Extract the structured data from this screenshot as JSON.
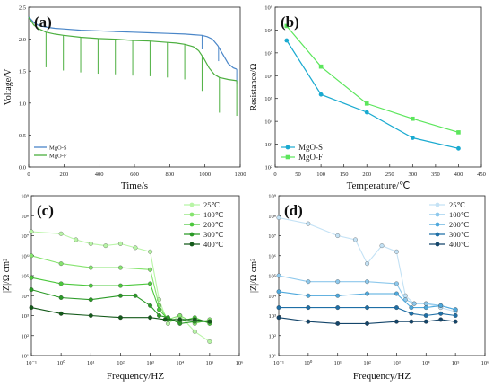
{
  "figure": {
    "panels": [
      {
        "id": "a",
        "label": "(a)"
      },
      {
        "id": "b",
        "label": "(b)"
      },
      {
        "id": "c",
        "label": "(c)"
      },
      {
        "id": "d",
        "label": "(d)"
      }
    ]
  },
  "chart_data": [
    {
      "panel": "(a)",
      "type": "line",
      "xlabel": "Time/s",
      "ylabel": "Voltage/V",
      "xlim": [
        0,
        1220
      ],
      "ylim": [
        0.0,
        2.5
      ],
      "xticks": [
        "0",
        "200",
        "400",
        "600",
        "800",
        "1000",
        "1200"
      ],
      "yticks": [
        "0.0",
        "0.5",
        "1.0",
        "1.5",
        "2.0",
        "2.5"
      ],
      "legend_position": "bottom-left",
      "series": [
        {
          "name": "MgO-S",
          "color": "#4a86c8",
          "x": [
            0,
            30,
            60,
            100,
            150,
            200,
            300,
            400,
            500,
            600,
            700,
            800,
            900,
            950,
            1000,
            1030,
            1060,
            1090,
            1120,
            1150,
            1180,
            1200
          ],
          "y": [
            2.35,
            2.26,
            2.21,
            2.19,
            2.17,
            2.16,
            2.14,
            2.13,
            2.12,
            2.11,
            2.1,
            2.09,
            2.08,
            2.07,
            2.06,
            2.04,
            2.0,
            1.9,
            1.76,
            1.62,
            1.55,
            1.53
          ],
          "pulse_times": [
            1000,
            1095,
            1200
          ],
          "pulse_depth": 0.22
        },
        {
          "name": "MgO-F",
          "color": "#4caf3f",
          "x": [
            0,
            30,
            60,
            100,
            150,
            200,
            300,
            400,
            500,
            600,
            700,
            800,
            850,
            900,
            950,
            980,
            1010,
            1040,
            1070,
            1100,
            1150,
            1200
          ],
          "y": [
            2.34,
            2.22,
            2.16,
            2.11,
            2.08,
            2.06,
            2.03,
            2.01,
            2.0,
            1.98,
            1.97,
            1.95,
            1.94,
            1.92,
            1.88,
            1.82,
            1.7,
            1.55,
            1.45,
            1.4,
            1.37,
            1.35
          ],
          "pulse_times": [
            100,
            200,
            300,
            400,
            500,
            600,
            700,
            800,
            900,
            1000,
            1100,
            1200
          ],
          "pulse_depth": 0.55
        }
      ]
    },
    {
      "panel": "(b)",
      "type": "line",
      "xlabel": "Temperature/℃",
      "ylabel": "Resistance/Ω",
      "xlim": [
        0,
        450
      ],
      "ylim_log10": [
        2,
        9
      ],
      "xticks": [
        "0",
        "50",
        "100",
        "150",
        "200",
        "250",
        "300",
        "350",
        "400",
        "450"
      ],
      "yticks": [
        "10²",
        "10³",
        "10⁴",
        "10⁵",
        "10⁶",
        "10⁷",
        "10⁸",
        "10⁹"
      ],
      "legend_position": "bottom-left",
      "series": [
        {
          "name": "MgO-S",
          "color": "#1aaad0",
          "marker": "circle",
          "x": [
            25,
            100,
            200,
            300,
            400
          ],
          "y": [
            35000000,
            150000,
            25000,
            1900,
            650
          ]
        },
        {
          "name": "MgO-F",
          "color": "#5ce65c",
          "marker": "square",
          "x": [
            25,
            100,
            200,
            300,
            400
          ],
          "y": [
            150000000,
            2500000,
            60000,
            13000,
            3300
          ]
        }
      ]
    },
    {
      "panel": "(c)",
      "type": "scatter",
      "xlabel": "Frequency/HZ",
      "ylabel": "|Z|/Ω cm²",
      "xlim_log10": [
        -1,
        6
      ],
      "ylim_log10": [
        1,
        9
      ],
      "xticks": [
        "10⁻¹",
        "10⁰",
        "10¹",
        "10²",
        "10³",
        "10⁴",
        "10⁵",
        "10⁶"
      ],
      "yticks": [
        "10¹",
        "10²",
        "10³",
        "10⁴",
        "10⁵",
        "10⁶",
        "10⁷",
        "10⁸",
        "10⁹"
      ],
      "legend_position": "top-right",
      "series": [
        {
          "name": "25℃",
          "color": "#b8f5a6",
          "log10_f": [
            -1,
            0,
            0.5,
            1,
            1.5,
            2,
            2.5,
            3,
            3.3,
            3.6,
            4,
            4.5,
            5
          ],
          "log10_z": [
            7.2,
            7.1,
            6.8,
            6.6,
            6.5,
            6.6,
            6.4,
            6.2,
            3.8,
            2.6,
            3.0,
            2.2,
            1.7
          ]
        },
        {
          "name": "100℃",
          "color": "#86e46f",
          "log10_f": [
            -1,
            0,
            1,
            2,
            3,
            3.3,
            3.6,
            4,
            4.5,
            5
          ],
          "log10_z": [
            6.0,
            5.6,
            5.4,
            5.4,
            5.3,
            3.5,
            2.8,
            3.0,
            2.6,
            2.8
          ]
        },
        {
          "name": "200℃",
          "color": "#4cc83d",
          "log10_f": [
            -1,
            0,
            1,
            2,
            3,
            3.3,
            3.6,
            4,
            4.5,
            5
          ],
          "log10_z": [
            4.9,
            4.6,
            4.5,
            4.5,
            4.6,
            3.3,
            2.8,
            2.7,
            2.9,
            2.6
          ]
        },
        {
          "name": "300℃",
          "color": "#2a9a26",
          "log10_f": [
            -1,
            0,
            1,
            2,
            2.5,
            3,
            3.3,
            3.6,
            4,
            4.5,
            5
          ],
          "log10_z": [
            4.3,
            3.9,
            3.8,
            4.0,
            4.0,
            3.5,
            3.0,
            2.9,
            2.6,
            2.7,
            2.7
          ]
        },
        {
          "name": "400℃",
          "color": "#145a1a",
          "log10_f": [
            -1,
            0,
            1,
            2,
            3,
            3.5,
            4,
            4.5,
            5
          ],
          "log10_z": [
            3.4,
            3.1,
            3.0,
            2.9,
            2.9,
            2.8,
            2.8,
            2.8,
            2.7
          ]
        }
      ]
    },
    {
      "panel": "(d)",
      "type": "scatter",
      "xlabel": "Frequency/HZ",
      "ylabel": "|Z|/Ω cm²",
      "xlim_log10": [
        -1,
        6
      ],
      "ylim_log10": [
        1,
        9
      ],
      "xticks": [
        "10⁻¹",
        "10⁰",
        "10¹",
        "10²",
        "10³",
        "10⁴",
        "10⁵",
        "10⁶"
      ],
      "yticks": [
        "10¹",
        "10²",
        "10³",
        "10⁴",
        "10⁵",
        "10⁶",
        "10⁷",
        "10⁸",
        "10⁹"
      ],
      "legend_position": "top-right",
      "series": [
        {
          "name": "25℃",
          "color": "#c4e2f5",
          "log10_f": [
            -1,
            0,
            1,
            1.6,
            2,
            2.5,
            3,
            3.3,
            3.6,
            4,
            4.5,
            5
          ],
          "log10_z": [
            7.9,
            7.6,
            7.0,
            6.8,
            5.6,
            6.5,
            6.2,
            4.0,
            3.6,
            3.6,
            3.4,
            3.2
          ]
        },
        {
          "name": "100℃",
          "color": "#8dc8ec",
          "log10_f": [
            -1,
            0,
            1,
            2,
            3,
            3.3,
            3.6,
            4,
            4.5,
            5
          ],
          "log10_z": [
            5.0,
            4.7,
            4.7,
            4.7,
            4.6,
            3.8,
            3.6,
            3.6,
            3.5,
            3.3
          ]
        },
        {
          "name": "200℃",
          "color": "#4ea8dc",
          "log10_f": [
            -1,
            0,
            1,
            2,
            3,
            3.5,
            4,
            4.5,
            5
          ],
          "log10_z": [
            4.2,
            4.0,
            4.0,
            4.1,
            4.1,
            3.4,
            3.4,
            3.5,
            3.3
          ]
        },
        {
          "name": "300℃",
          "color": "#1f6fa6",
          "log10_f": [
            -1,
            0,
            1,
            2,
            3,
            3.5,
            4,
            4.5,
            5
          ],
          "log10_z": [
            3.4,
            3.4,
            3.4,
            3.4,
            3.4,
            3.1,
            3.0,
            3.1,
            3.0
          ]
        },
        {
          "name": "400℃",
          "color": "#14456a",
          "log10_f": [
            -1,
            0,
            1,
            2,
            3,
            3.5,
            4,
            4.5,
            5
          ],
          "log10_z": [
            2.9,
            2.7,
            2.6,
            2.6,
            2.7,
            2.7,
            2.7,
            2.8,
            2.7
          ]
        }
      ]
    }
  ]
}
